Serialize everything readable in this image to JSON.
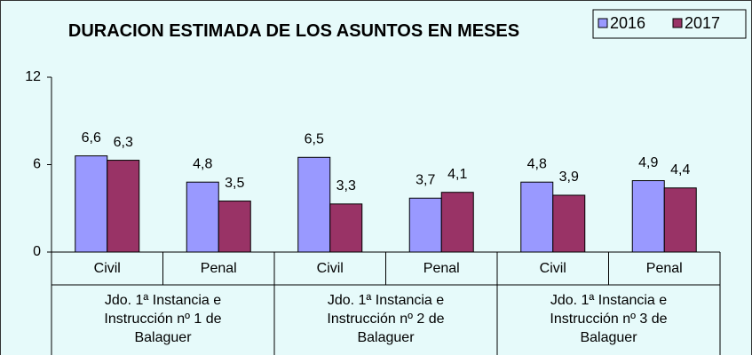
{
  "chart_data": {
    "type": "bar",
    "title": "DURACION ESTIMADA DE LOS ASUNTOS EN MESES",
    "categories": [
      "Civil",
      "Penal",
      "Civil",
      "Penal",
      "Civil",
      "Penal"
    ],
    "groups": [
      "Jdo. 1ª Instancia e Instrucción nº 1 de Balaguer",
      "Jdo. 1ª Instancia e Instrucción nº 2 de Balaguer",
      "Jdo. 1ª Instancia e Instrucción nº 3 de Balaguer"
    ],
    "series": [
      {
        "name": "2016",
        "color": "#9999ff",
        "values": [
          6.6,
          4.8,
          6.5,
          3.7,
          4.8,
          4.9
        ],
        "value_labels": [
          "6,6",
          "4,8",
          "6,5",
          "3,7",
          "4,8",
          "4,9"
        ]
      },
      {
        "name": "2017",
        "color": "#993366",
        "values": [
          6.3,
          3.5,
          3.3,
          4.1,
          3.9,
          4.4
        ],
        "value_labels": [
          "6,3",
          "3,5",
          "3,3",
          "4,1",
          "3,9",
          "4,4"
        ]
      }
    ],
    "ylim": [
      0,
      12
    ],
    "yticks": [
      0,
      6,
      12
    ],
    "grid": false,
    "legend": "top-right"
  }
}
